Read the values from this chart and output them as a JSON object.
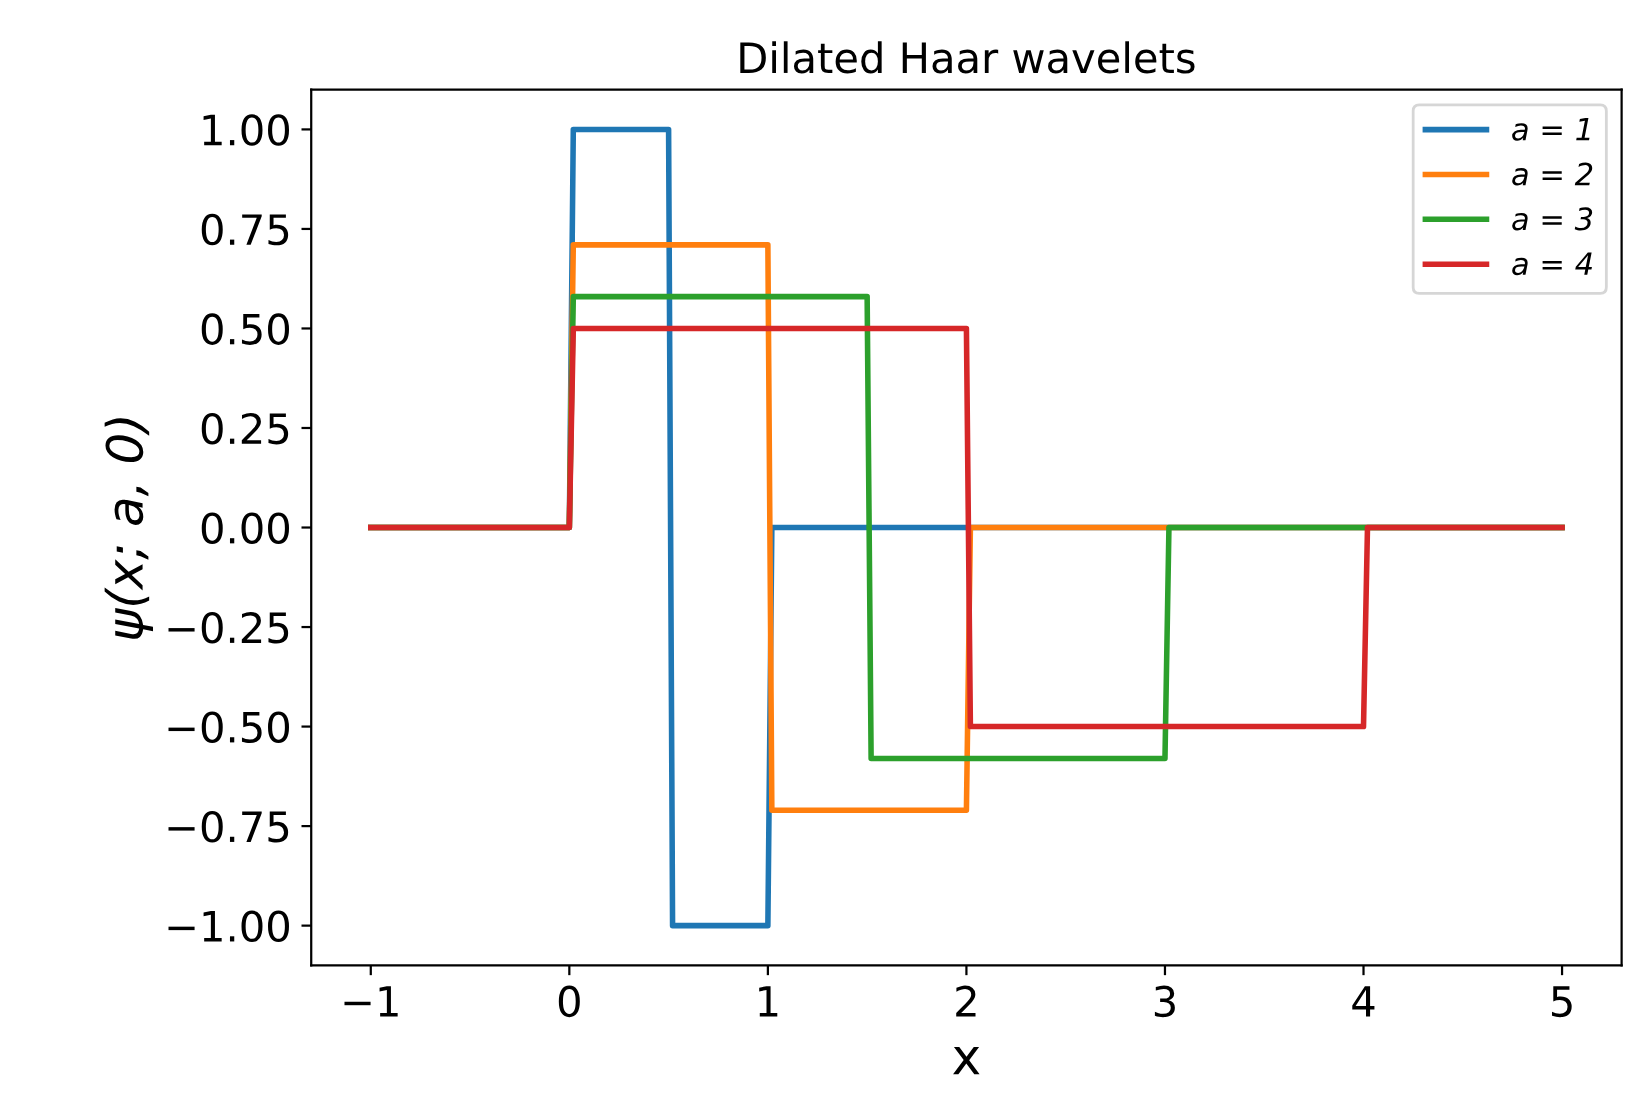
{
  "chart_data": {
    "type": "line",
    "title": "Dilated Haar wavelets",
    "xlabel": "x",
    "ylabel": "ψ(x; a, 0)",
    "series": [
      {
        "name": "a = 1",
        "color": "#1f77b4",
        "x": [
          -1,
          0,
          0.02,
          0.5,
          0.52,
          1,
          1.02,
          5
        ],
        "values": [
          0,
          0,
          1,
          1,
          -1,
          -1,
          0,
          0
        ]
      },
      {
        "name": "a = 2",
        "color": "#ff7f0e",
        "x": [
          -1,
          0,
          0.02,
          1,
          1.02,
          2,
          2.02,
          5
        ],
        "values": [
          0,
          0,
          0.71,
          0.71,
          -0.71,
          -0.71,
          0,
          0
        ]
      },
      {
        "name": "a = 3",
        "color": "#2ca02c",
        "x": [
          -1,
          0,
          0.02,
          1.5,
          1.52,
          3,
          3.02,
          5
        ],
        "values": [
          0,
          0,
          0.58,
          0.58,
          -0.58,
          -0.58,
          0,
          0
        ]
      },
      {
        "name": "a = 4",
        "color": "#d62728",
        "x": [
          -1,
          0,
          0.02,
          2,
          2.02,
          4,
          4.02,
          5
        ],
        "values": [
          0,
          0,
          0.5,
          0.5,
          -0.5,
          -0.5,
          0,
          0
        ]
      }
    ],
    "xlim": [
      -1.3,
      5.3
    ],
    "ylim": [
      -1.1,
      1.1
    ],
    "xticks": [
      {
        "value": -1,
        "label": "−1"
      },
      0,
      1,
      2,
      3,
      4,
      5
    ],
    "yticks": [
      {
        "value": -1,
        "label": "−1.00"
      },
      {
        "value": -0.75,
        "label": "−0.75"
      },
      {
        "value": -0.5,
        "label": "−0.50"
      },
      {
        "value": -0.25,
        "label": "−0.25"
      },
      {
        "value": 0,
        "label": "0.00"
      },
      {
        "value": 0.25,
        "label": "0.25"
      },
      {
        "value": 0.5,
        "label": "0.50"
      },
      {
        "value": 0.75,
        "label": "0.75"
      },
      {
        "value": 1,
        "label": "1.00"
      }
    ],
    "grid": false,
    "legend": "top right",
    "marker": "none",
    "line_style": "solid"
  }
}
